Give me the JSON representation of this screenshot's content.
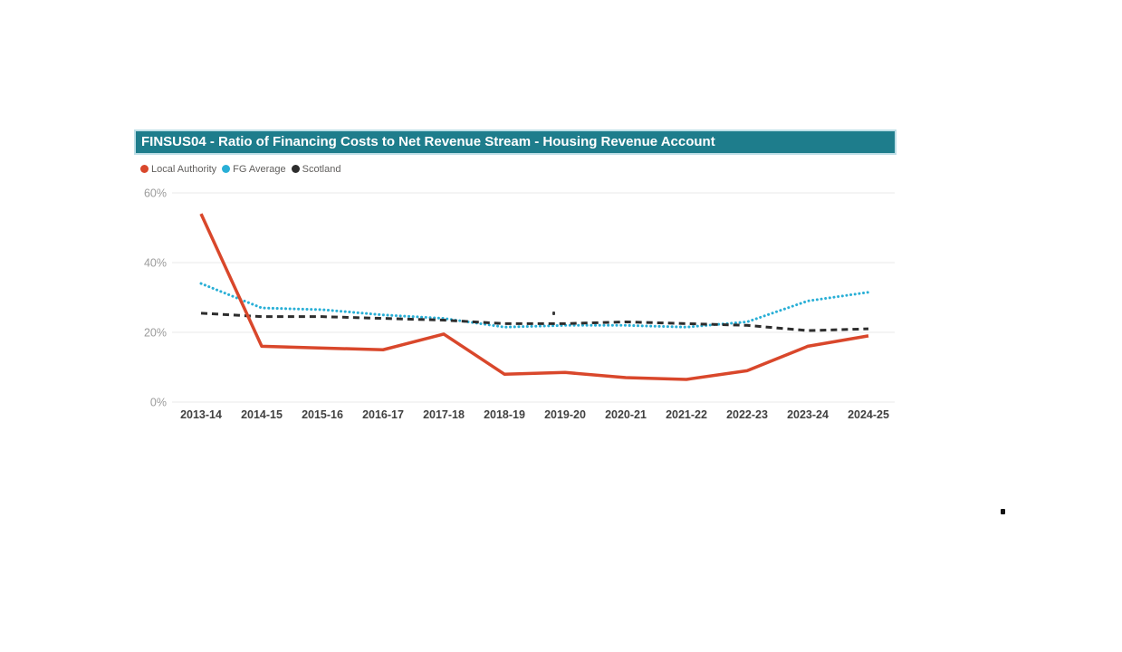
{
  "header": {
    "title": "FINSUS04 - Ratio of Financing Costs to Net Revenue Stream - Housing Revenue Account",
    "background": "#1E7D8C",
    "border_color": "#BEDFE7",
    "text_color": "#FFFFFF"
  },
  "chart_data": {
    "type": "line",
    "title": "FINSUS04 - Ratio of Financing Costs to Net Revenue Stream - Housing Revenue Account",
    "categories": [
      "2013-14",
      "2014-15",
      "2015-16",
      "2016-17",
      "2017-18",
      "2018-19",
      "2019-20",
      "2020-21",
      "2021-22",
      "2022-23",
      "2023-24",
      "2024-25"
    ],
    "series": [
      {
        "name": "Local Authority",
        "color": "#D9472B",
        "line_style": "solid",
        "values": [
          54,
          16,
          15.5,
          15,
          19.5,
          8,
          8.5,
          7,
          6.5,
          9,
          16,
          19
        ]
      },
      {
        "name": "FG Average",
        "color": "#29AFD6",
        "line_style": "dotted",
        "values": [
          34,
          27,
          26.5,
          25,
          24,
          21.5,
          22,
          22,
          21.5,
          23,
          29,
          31.5
        ]
      },
      {
        "name": "Scotland",
        "color": "#2D2D2D",
        "line_style": "dashed",
        "values": [
          25.5,
          24.5,
          24.5,
          24,
          23.5,
          22.5,
          22.5,
          23,
          22.5,
          22,
          20.5,
          21
        ]
      }
    ],
    "xlabel": "",
    "ylabel": "",
    "ylim": [
      0,
      60
    ],
    "y_ticks": [
      {
        "value": 0,
        "label": "0%"
      },
      {
        "value": 20,
        "label": "20%"
      },
      {
        "value": 40,
        "label": "40%"
      },
      {
        "value": 60,
        "label": "60%"
      }
    ],
    "grid": true,
    "legend_position": "top-left"
  }
}
